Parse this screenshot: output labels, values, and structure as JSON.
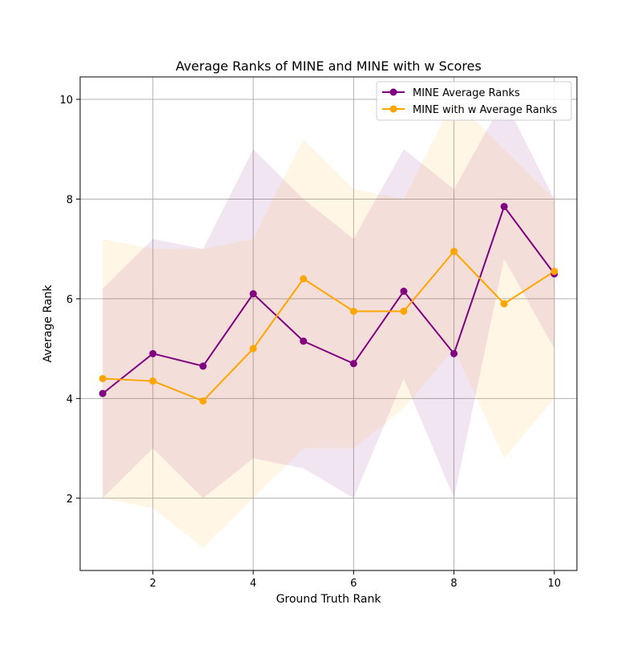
{
  "chart_data": {
    "type": "line",
    "title": "Average Ranks of MINE and MINE with w Scores",
    "xlabel": "Ground Truth Rank",
    "ylabel": "Average Rank",
    "xlim": [
      0.55,
      10.45
    ],
    "ylim": [
      0.55,
      10.45
    ],
    "xticks": [
      2,
      4,
      6,
      8,
      10
    ],
    "yticks": [
      2,
      4,
      6,
      8,
      10
    ],
    "grid": true,
    "legend_position": "top-right",
    "x": [
      1,
      2,
      3,
      4,
      5,
      6,
      7,
      8,
      9,
      10
    ],
    "series": [
      {
        "name": "MINE Average Ranks",
        "color": "#800080",
        "values": [
          4.1,
          4.9,
          4.65,
          6.1,
          5.15,
          4.7,
          6.15,
          4.9,
          7.85,
          6.5
        ],
        "band_upper": [
          6.2,
          7.2,
          7.0,
          9.0,
          8.0,
          7.2,
          9.0,
          8.2,
          10.0,
          8.0
        ],
        "band_lower": [
          2.0,
          3.0,
          2.0,
          2.8,
          2.6,
          2.0,
          4.4,
          2.0,
          6.8,
          5.0
        ]
      },
      {
        "name": "MINE with w Average Ranks",
        "color": "#ffa500",
        "values": [
          4.4,
          4.35,
          3.95,
          5.0,
          6.4,
          5.75,
          5.75,
          6.95,
          5.9,
          6.55
        ],
        "band_upper": [
          7.2,
          7.0,
          7.0,
          7.2,
          9.2,
          8.2,
          8.0,
          10.0,
          9.0,
          8.0
        ],
        "band_lower": [
          2.0,
          1.8,
          1.0,
          2.0,
          3.0,
          3.0,
          3.8,
          5.0,
          2.8,
          4.0
        ]
      }
    ]
  }
}
